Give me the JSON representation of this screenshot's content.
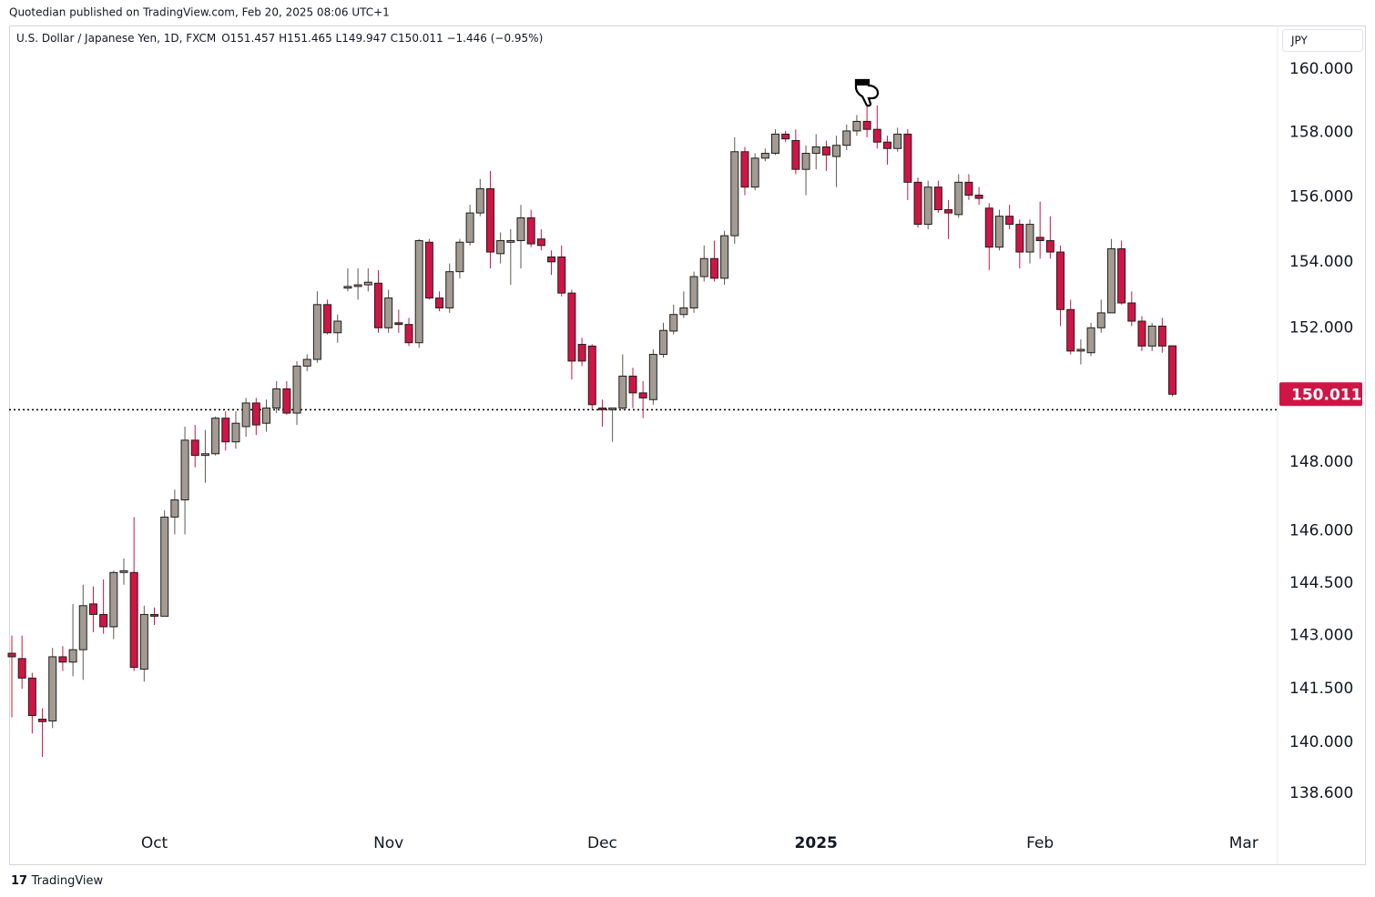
{
  "header": {
    "published": "Quotedian published on TradingView.com, Feb 20, 2025 08:06 UTC+1",
    "symbol": "U.S. Dollar / Japanese Yen, 1D, FXCM",
    "ohlc_text": "O151.457 H151.465 L149.947 C150.011 −1.446 (−0.95%)",
    "currency": "JPY"
  },
  "footer": {
    "brand": "TradingView"
  },
  "chart_data": {
    "type": "candlestick",
    "log_scale": true,
    "up_color": "#a39b91",
    "down_color": "#cf1545",
    "last_price_label": "150.011",
    "horizontal_line": 149.55,
    "categories": [
      null,
      null,
      null,
      null,
      null,
      null,
      null,
      null,
      null,
      null,
      null,
      null,
      null,
      null,
      "Oct",
      null,
      null,
      null,
      null,
      null,
      null,
      null,
      null,
      null,
      null,
      null,
      null,
      null,
      null,
      null,
      null,
      null,
      null,
      null,
      null,
      null,
      null,
      "Nov",
      null,
      null,
      null,
      null,
      null,
      null,
      null,
      null,
      null,
      null,
      null,
      null,
      null,
      null,
      null,
      null,
      null,
      null,
      null,
      null,
      "Dec",
      null,
      null,
      null,
      null,
      null,
      null,
      null,
      null,
      null,
      null,
      null,
      null,
      null,
      null,
      null,
      null,
      null,
      null,
      null,
      null,
      "2025",
      null,
      null,
      null,
      null,
      null,
      null,
      null,
      null,
      null,
      null,
      null,
      null,
      null,
      null,
      null,
      null,
      null,
      null,
      null,
      null,
      null,
      "Feb",
      null,
      null,
      null,
      null,
      null,
      null,
      null,
      null,
      null,
      null,
      null,
      null,
      null,
      null,
      null,
      null,
      null,
      null,
      null,
      "Mar",
      null,
      null,
      null
    ],
    "open": [
      142.5,
      142.35,
      141.8,
      140.65,
      140.6,
      142.4,
      142.25,
      142.6,
      143.9,
      143.6,
      143.25,
      144.8,
      144.8,
      142.05,
      143.6,
      143.55,
      146.4,
      146.9,
      148.65,
      148.2,
      148.25,
      149.3,
      148.6,
      149.05,
      149.75,
      149.15,
      149.6,
      150.17,
      149.45,
      150.85,
      151.05,
      152.7,
      151.85,
      153.2,
      153.25,
      153.3,
      153.35,
      152.0,
      152.15,
      152.1,
      151.55,
      154.6,
      152.9,
      152.6,
      153.7,
      154.6,
      155.5,
      156.25,
      154.25,
      154.6,
      154.65,
      155.35,
      154.7,
      154.15,
      154.15,
      153.05,
      151.5,
      151.45,
      149.6,
      149.55,
      149.6,
      150.55,
      150.05,
      149.85,
      151.2,
      151.9,
      152.4,
      152.6,
      153.55,
      154.1,
      153.5,
      154.8,
      157.4,
      156.3,
      157.2,
      157.35,
      157.95,
      157.75,
      156.85,
      157.35,
      157.55,
      157.25,
      157.6,
      158.05,
      158.35,
      158.1,
      157.7,
      157.5,
      157.95,
      156.45,
      155.15,
      156.3,
      155.6,
      155.45,
      156.45,
      156.05,
      155.65,
      154.45,
      155.4,
      155.15,
      154.3,
      154.75,
      154.65,
      154.3,
      152.55,
      151.3,
      151.25,
      152.0,
      152.45,
      154.4,
      152.75,
      152.2,
      151.45,
      152.05,
      151.457,
      null,
      null,
      null,
      null,
      null,
      null,
      null,
      null,
      null,
      null
    ],
    "high": [
      143.0,
      143.0,
      141.95,
      140.95,
      142.65,
      142.7,
      143.9,
      144.45,
      144.4,
      144.6,
      144.85,
      145.2,
      146.4,
      143.85,
      143.8,
      146.6,
      147.2,
      149.05,
      149.1,
      148.95,
      149.35,
      149.5,
      149.5,
      149.9,
      149.9,
      149.85,
      150.4,
      150.4,
      151.0,
      151.2,
      153.1,
      152.85,
      152.4,
      153.8,
      153.8,
      153.8,
      153.75,
      153.15,
      152.55,
      152.3,
      154.7,
      154.7,
      153.1,
      153.95,
      154.7,
      155.75,
      156.55,
      156.8,
      154.9,
      155.0,
      155.75,
      155.6,
      155.0,
      154.35,
      154.5,
      153.15,
      151.7,
      151.5,
      149.85,
      149.6,
      151.2,
      150.8,
      150.4,
      151.35,
      152.15,
      152.7,
      153.1,
      153.7,
      154.5,
      154.65,
      154.95,
      157.85,
      157.55,
      157.35,
      157.5,
      158.1,
      158.05,
      158.1,
      157.6,
      157.95,
      157.75,
      157.9,
      158.25,
      158.55,
      158.9,
      158.85,
      157.9,
      158.15,
      158.1,
      156.6,
      156.5,
      156.5,
      155.9,
      156.7,
      156.7,
      156.3,
      155.8,
      155.6,
      155.75,
      155.3,
      155.3,
      155.85,
      155.4,
      154.5,
      152.85,
      151.65,
      152.15,
      152.85,
      154.7,
      154.65,
      153.1,
      152.35,
      152.15,
      152.3,
      151.465,
      null,
      null,
      null,
      null,
      null,
      null,
      null,
      null,
      null,
      null
    ],
    "low": [
      140.7,
      141.5,
      140.25,
      139.6,
      140.4,
      142.0,
      141.85,
      141.75,
      143.1,
      143.05,
      142.9,
      144.45,
      142.0,
      141.7,
      143.3,
      143.55,
      145.9,
      145.9,
      147.85,
      147.4,
      148.2,
      148.35,
      148.4,
      148.75,
      148.8,
      148.9,
      149.45,
      149.4,
      149.1,
      150.7,
      150.95,
      151.8,
      151.55,
      153.1,
      152.85,
      153.1,
      151.85,
      151.85,
      151.85,
      151.45,
      151.4,
      152.85,
      152.5,
      152.45,
      153.5,
      154.5,
      155.4,
      153.8,
      153.95,
      153.3,
      153.8,
      154.45,
      154.35,
      153.6,
      152.95,
      150.45,
      150.85,
      149.55,
      149.05,
      148.6,
      149.55,
      149.6,
      149.3,
      149.7,
      151.1,
      151.8,
      152.3,
      152.45,
      153.4,
      153.4,
      153.3,
      154.55,
      156.05,
      156.2,
      157.1,
      157.3,
      157.7,
      156.7,
      156.05,
      156.85,
      156.8,
      156.3,
      157.45,
      157.9,
      157.85,
      157.5,
      157.0,
      157.4,
      155.9,
      155.05,
      155.0,
      155.5,
      154.7,
      155.35,
      155.9,
      155.75,
      153.75,
      154.35,
      155.0,
      153.8,
      153.95,
      154.1,
      154.1,
      152.05,
      151.2,
      150.9,
      151.15,
      151.85,
      152.45,
      152.7,
      152.05,
      151.3,
      151.3,
      151.25,
      149.947,
      null,
      null,
      null,
      null,
      null,
      null,
      null,
      null,
      null,
      null
    ],
    "close": [
      142.4,
      141.8,
      140.75,
      140.58,
      142.4,
      142.25,
      142.6,
      143.85,
      143.6,
      143.25,
      144.8,
      144.85,
      142.1,
      143.6,
      143.55,
      146.4,
      146.9,
      148.65,
      148.2,
      148.25,
      149.3,
      148.6,
      149.15,
      149.75,
      149.1,
      149.6,
      150.17,
      149.45,
      150.85,
      151.05,
      152.7,
      151.85,
      152.2,
      153.25,
      153.3,
      153.38,
      152.0,
      152.9,
      152.1,
      151.55,
      154.65,
      152.9,
      152.6,
      153.7,
      154.6,
      155.5,
      156.25,
      154.3,
      154.65,
      154.65,
      155.35,
      154.55,
      154.5,
      154.0,
      153.05,
      151.0,
      151.0,
      149.7,
      149.55,
      149.6,
      150.55,
      150.05,
      149.9,
      151.2,
      151.92,
      152.4,
      152.6,
      153.55,
      154.1,
      153.5,
      154.8,
      157.4,
      156.3,
      157.2,
      157.35,
      157.95,
      157.8,
      156.85,
      157.35,
      157.55,
      157.3,
      157.6,
      158.05,
      158.35,
      158.1,
      157.7,
      157.5,
      157.95,
      156.45,
      155.15,
      156.3,
      155.6,
      155.5,
      156.45,
      156.05,
      155.95,
      154.45,
      155.4,
      155.15,
      154.3,
      155.15,
      154.65,
      154.3,
      152.55,
      151.3,
      151.35,
      152.0,
      152.45,
      154.4,
      152.75,
      152.2,
      151.45,
      152.05,
      151.45,
      150.011,
      null,
      null,
      null,
      null,
      null,
      null,
      null,
      null,
      null,
      null
    ],
    "ylim": [
      137.7,
      161.39
    ],
    "yticks": [
      {
        "value": 160,
        "label": "160.000"
      },
      {
        "value": 158,
        "label": "158.000"
      },
      {
        "value": 156,
        "label": "156.000"
      },
      {
        "value": 154,
        "label": "154.000"
      },
      {
        "value": 152,
        "label": "152.000"
      },
      {
        "value": 148,
        "label": "148.000"
      },
      {
        "value": 146,
        "label": "146.000"
      },
      {
        "value": 144.5,
        "label": "144.500"
      },
      {
        "value": 143,
        "label": "143.000"
      },
      {
        "value": 141.5,
        "label": "141.500"
      },
      {
        "value": 140,
        "label": "140.000"
      },
      {
        "value": 138.6,
        "label": "138.600"
      }
    ]
  }
}
